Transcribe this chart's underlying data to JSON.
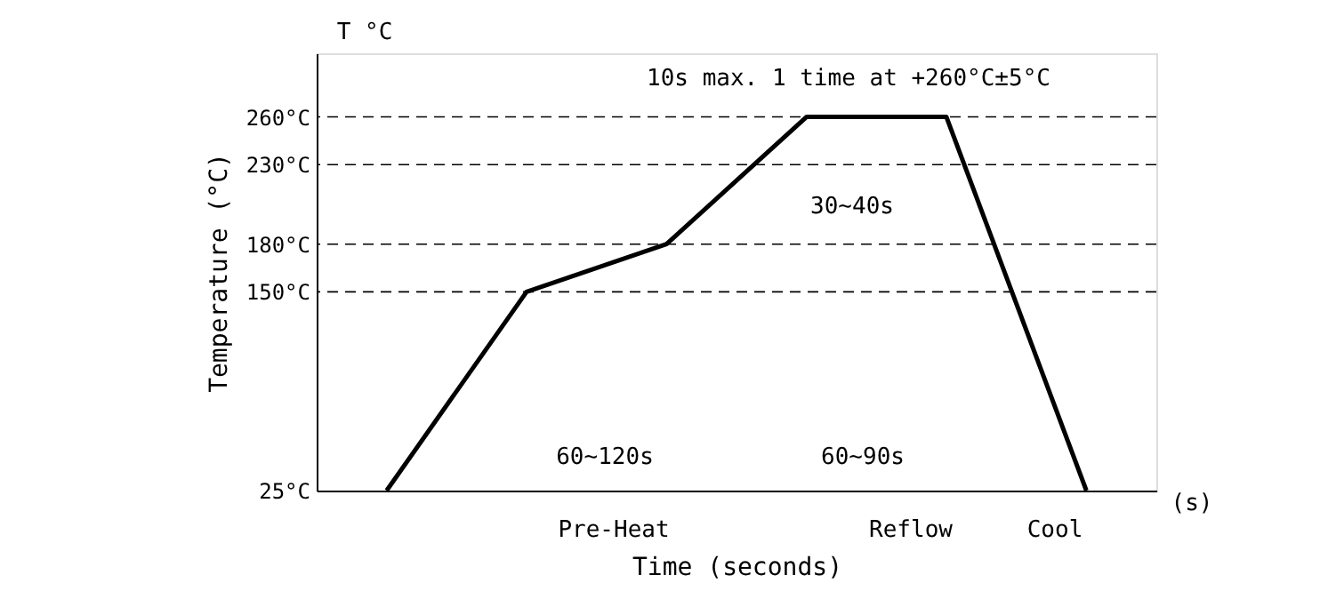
{
  "chart_data": {
    "type": "line",
    "xlabel": "Time (seconds)",
    "ylabel": "Temperature (°C)",
    "categories": [
      null,
      null,
      null,
      null,
      null,
      null
    ],
    "series": [
      {
        "color": "#000000",
        "values": [
          25,
          150,
          180,
          260,
          260,
          25
        ]
      }
    ],
    "ylim": [
      25,
      300
    ],
    "yticks": [
      {
        "value": 25,
        "label": "25°C"
      },
      {
        "value": 150,
        "label": "150°C"
      },
      {
        "value": 180,
        "label": "180°C"
      },
      {
        "value": 230,
        "label": "230°C"
      },
      {
        "value": 260,
        "label": "260°C"
      }
    ],
    "ref_lines": [
      {
        "axis": "y",
        "value": 260,
        "line_style": "dashed"
      },
      {
        "axis": "y",
        "value": 230,
        "line_style": "dashed"
      },
      {
        "axis": "y",
        "value": 180,
        "line_style": "dashed"
      },
      {
        "axis": "y",
        "value": 150,
        "line_style": "dashed"
      }
    ],
    "annotations": [
      "T °C",
      "(s)",
      "10s max. 1 time at +260°C±5°C",
      "30~40s",
      "60~120s",
      "60~90s",
      "Pre-Heat",
      "Reflow",
      "Cool"
    ],
    "tick_labels": "y",
    "grid": false,
    "marker": "none",
    "line_style": "solid"
  }
}
